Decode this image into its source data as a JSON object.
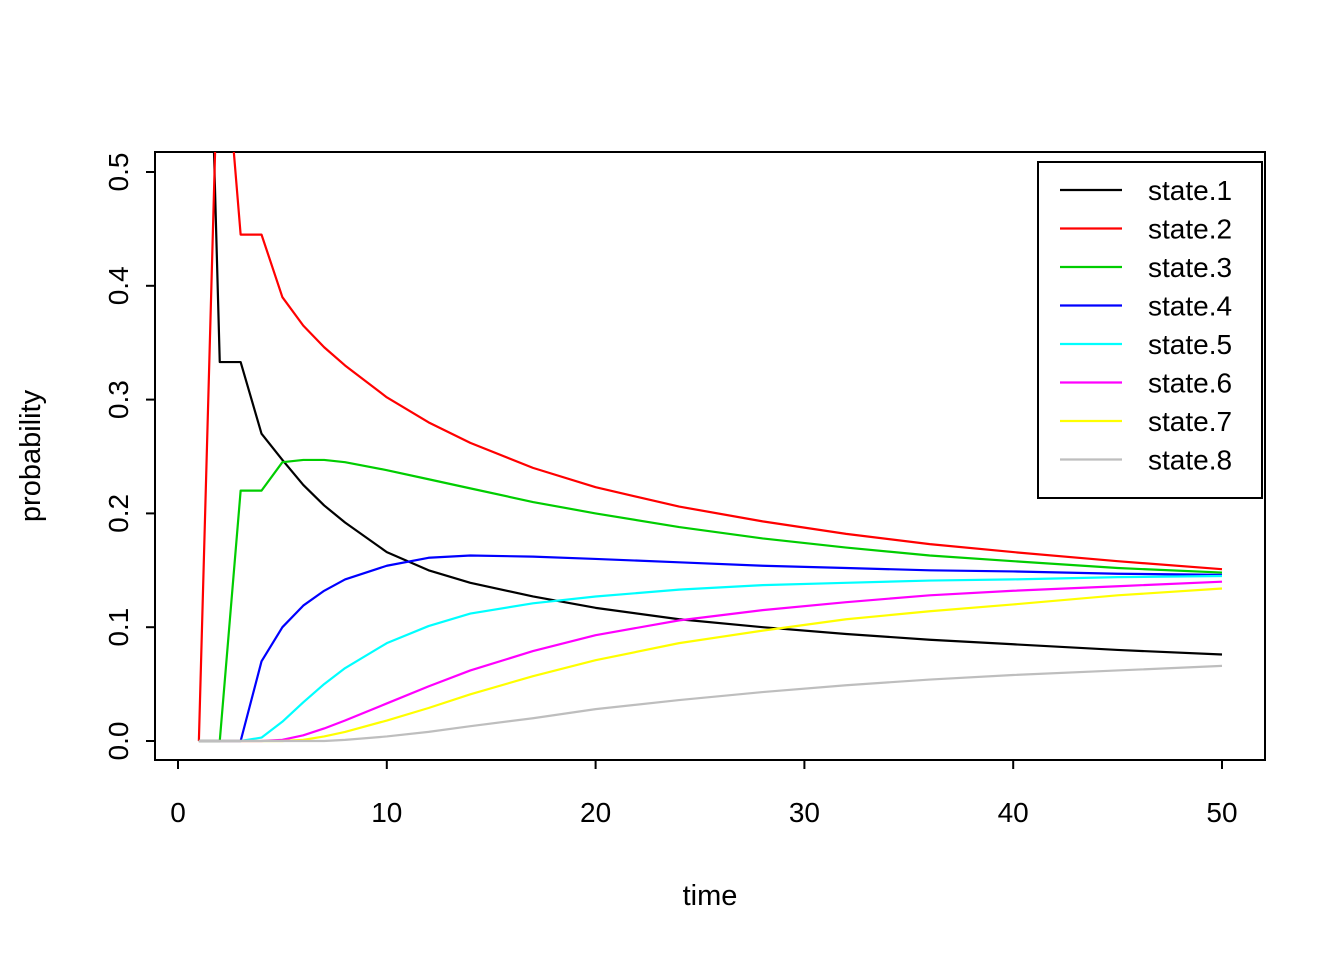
{
  "figure": {
    "background": "#FFFFFF",
    "border_color": "#000000"
  },
  "chart_data": {
    "type": "line",
    "title": "",
    "xlabel": "time",
    "ylabel": "probability",
    "xlim": [
      0,
      50
    ],
    "ylim": [
      0.0,
      0.52
    ],
    "grid": false,
    "legend_position": "top-right",
    "x_ticks": [
      0,
      10,
      20,
      30,
      40,
      50
    ],
    "x_tick_labels": [
      "0",
      "10",
      "20",
      "30",
      "40",
      "50"
    ],
    "y_ticks": [
      0.0,
      0.1,
      0.2,
      0.3,
      0.4,
      0.5
    ],
    "y_tick_labels": [
      "0.0",
      "0.1",
      "0.2",
      "0.3",
      "0.4",
      "0.5"
    ],
    "x": [
      1,
      2,
      3,
      4,
      5,
      6,
      7,
      8,
      10,
      12,
      14,
      17,
      20,
      24,
      28,
      32,
      36,
      40,
      45,
      50
    ],
    "series": [
      {
        "name": "state.1",
        "color": "#000000",
        "values": [
          1.0,
          0.333,
          0.333,
          0.27,
          0.247,
          0.225,
          0.207,
          0.192,
          0.166,
          0.15,
          0.139,
          0.127,
          0.117,
          0.107,
          0.1,
          0.094,
          0.089,
          0.085,
          0.08,
          0.076
        ]
      },
      {
        "name": "state.2",
        "color": "#FF0000",
        "values": [
          0.0,
          0.667,
          0.445,
          0.445,
          0.39,
          0.365,
          0.346,
          0.33,
          0.302,
          0.28,
          0.262,
          0.24,
          0.223,
          0.206,
          0.193,
          0.182,
          0.173,
          0.166,
          0.158,
          0.151
        ]
      },
      {
        "name": "state.3",
        "color": "#00CD00",
        "values": [
          0.0,
          0.0,
          0.22,
          0.22,
          0.245,
          0.247,
          0.247,
          0.245,
          0.238,
          0.23,
          0.222,
          0.21,
          0.2,
          0.188,
          0.178,
          0.17,
          0.163,
          0.158,
          0.152,
          0.148
        ]
      },
      {
        "name": "state.4",
        "color": "#0000FF",
        "values": [
          0.0,
          0.0,
          0.0,
          0.07,
          0.1,
          0.119,
          0.132,
          0.142,
          0.154,
          0.161,
          0.163,
          0.162,
          0.16,
          0.157,
          0.154,
          0.152,
          0.15,
          0.149,
          0.147,
          0.146
        ]
      },
      {
        "name": "state.5",
        "color": "#00FFFF",
        "values": [
          0.0,
          0.0,
          0.0,
          0.003,
          0.017,
          0.034,
          0.05,
          0.064,
          0.086,
          0.101,
          0.112,
          0.121,
          0.127,
          0.133,
          0.137,
          0.139,
          0.141,
          0.142,
          0.144,
          0.145
        ]
      },
      {
        "name": "state.6",
        "color": "#FF00FF",
        "values": [
          0.0,
          0.0,
          0.0,
          0.0,
          0.001,
          0.005,
          0.011,
          0.018,
          0.033,
          0.048,
          0.062,
          0.079,
          0.093,
          0.106,
          0.115,
          0.122,
          0.128,
          0.132,
          0.136,
          0.14
        ]
      },
      {
        "name": "state.7",
        "color": "#FFFF00",
        "values": [
          0.0,
          0.0,
          0.0,
          0.0,
          0.0,
          0.001,
          0.004,
          0.008,
          0.018,
          0.029,
          0.041,
          0.057,
          0.071,
          0.086,
          0.097,
          0.107,
          0.114,
          0.12,
          0.128,
          0.134
        ]
      },
      {
        "name": "state.8",
        "color": "#BEBEBE",
        "values": [
          0.0,
          0.0,
          0.0,
          0.0,
          0.0,
          0.0,
          0.0,
          0.001,
          0.004,
          0.008,
          0.013,
          0.02,
          0.028,
          0.036,
          0.043,
          0.049,
          0.054,
          0.058,
          0.062,
          0.066
        ]
      }
    ]
  }
}
